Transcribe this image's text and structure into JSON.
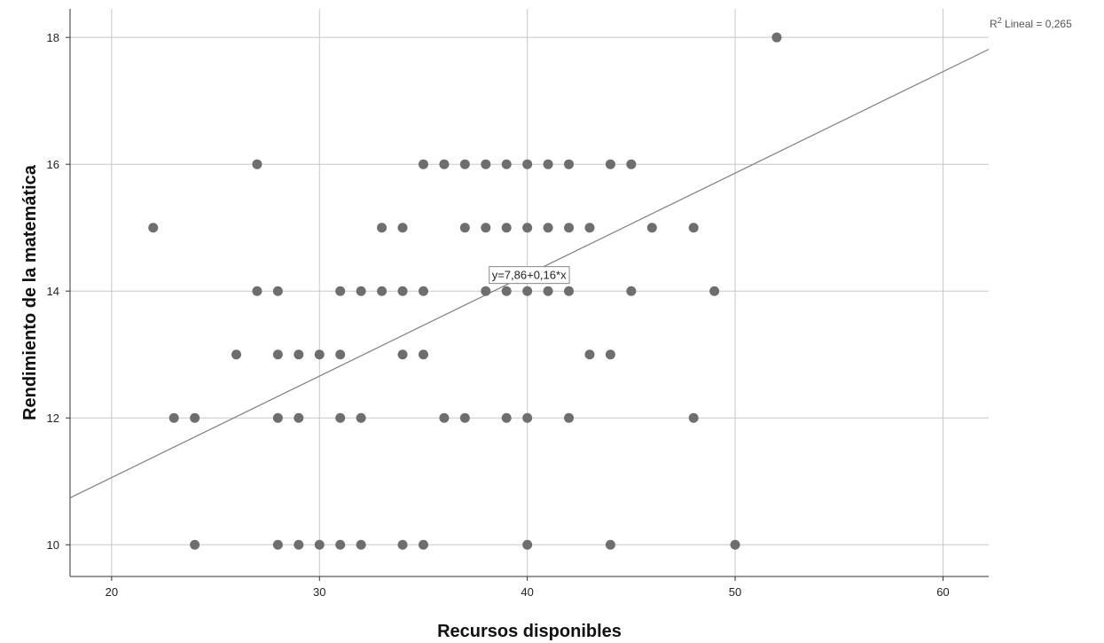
{
  "chart_data": {
    "type": "scatter",
    "xlabel": "Recursos disponibles",
    "ylabel": "Rendimiento de la matemática",
    "xlim": [
      18,
      62.2
    ],
    "ylim": [
      9.5,
      18.45
    ],
    "xticks": [
      20,
      30,
      40,
      50,
      60
    ],
    "yticks": [
      10,
      12,
      14,
      16,
      18
    ],
    "grid": true,
    "point_color": "#6e6e6e",
    "line_color": "#808080",
    "grid_color": "#c8c8c8",
    "fit": {
      "intercept": 7.86,
      "slope": 0.16,
      "equation_label": "y=7,86+0,16*x",
      "equation_anchor_x": 40,
      "r2_label_prefix": "R",
      "r2_label_sup": "2",
      "r2_label_rest": " Lineal = 0,265"
    },
    "points": [
      [
        52,
        18
      ],
      [
        27,
        16
      ],
      [
        35,
        16
      ],
      [
        36,
        16
      ],
      [
        37,
        16
      ],
      [
        38,
        16
      ],
      [
        39,
        16
      ],
      [
        40,
        16
      ],
      [
        41,
        16
      ],
      [
        42,
        16
      ],
      [
        44,
        16
      ],
      [
        45,
        16
      ],
      [
        22,
        15
      ],
      [
        33,
        15
      ],
      [
        34,
        15
      ],
      [
        37,
        15
      ],
      [
        38,
        15
      ],
      [
        39,
        15
      ],
      [
        40,
        15
      ],
      [
        41,
        15
      ],
      [
        42,
        15
      ],
      [
        43,
        15
      ],
      [
        46,
        15
      ],
      [
        48,
        15
      ],
      [
        27,
        14
      ],
      [
        28,
        14
      ],
      [
        31,
        14
      ],
      [
        32,
        14
      ],
      [
        33,
        14
      ],
      [
        34,
        14
      ],
      [
        35,
        14
      ],
      [
        38,
        14
      ],
      [
        39,
        14
      ],
      [
        40,
        14
      ],
      [
        41,
        14
      ],
      [
        42,
        14
      ],
      [
        45,
        14
      ],
      [
        49,
        14
      ],
      [
        26,
        13
      ],
      [
        28,
        13
      ],
      [
        29,
        13
      ],
      [
        30,
        13
      ],
      [
        31,
        13
      ],
      [
        34,
        13
      ],
      [
        35,
        13
      ],
      [
        43,
        13
      ],
      [
        44,
        13
      ],
      [
        23,
        12
      ],
      [
        24,
        12
      ],
      [
        28,
        12
      ],
      [
        29,
        12
      ],
      [
        31,
        12
      ],
      [
        32,
        12
      ],
      [
        36,
        12
      ],
      [
        37,
        12
      ],
      [
        39,
        12
      ],
      [
        40,
        12
      ],
      [
        42,
        12
      ],
      [
        48,
        12
      ],
      [
        24,
        10
      ],
      [
        28,
        10
      ],
      [
        29,
        10
      ],
      [
        30,
        10
      ],
      [
        31,
        10
      ],
      [
        32,
        10
      ],
      [
        34,
        10
      ],
      [
        35,
        10
      ],
      [
        40,
        10
      ],
      [
        44,
        10
      ],
      [
        50,
        10
      ]
    ]
  }
}
